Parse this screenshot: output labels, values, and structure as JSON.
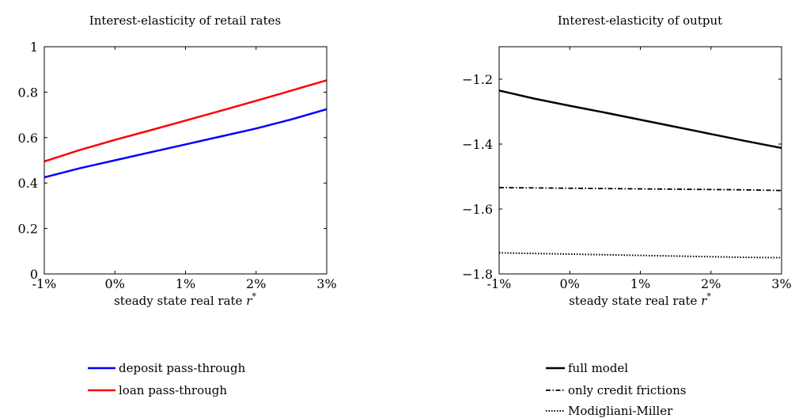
{
  "chart_data": [
    {
      "type": "line",
      "title": "Interest-elasticity of retail rates",
      "xlabel": "steady state real rate",
      "xlabel_symbol": "r",
      "xlabel_sup": "*",
      "ylabel": "",
      "xlim": [
        -1,
        3
      ],
      "ylim": [
        0,
        1
      ],
      "x_ticks": [
        -1,
        0,
        1,
        2,
        3
      ],
      "x_tick_labels": [
        "-1%",
        "0%",
        "1%",
        "2%",
        "3%"
      ],
      "y_ticks": [
        0,
        0.2,
        0.4,
        0.6,
        0.8,
        1
      ],
      "y_tick_labels": [
        "0",
        "0.2",
        "0.4",
        "0.6",
        "0.8",
        "1"
      ],
      "grid": false,
      "legend_position": "below",
      "series": [
        {
          "name": "deposit pass-through",
          "color": "#0000ff",
          "dash": "solid",
          "x": [
            -1,
            -0.5,
            0,
            0.5,
            1,
            1.5,
            2,
            2.5,
            3
          ],
          "y": [
            0.425,
            0.465,
            0.5,
            0.535,
            0.57,
            0.605,
            0.64,
            0.68,
            0.725
          ]
        },
        {
          "name": "loan pass-through",
          "color": "#ff0000",
          "dash": "solid",
          "x": [
            -1,
            -0.5,
            0,
            0.5,
            1,
            1.5,
            2,
            2.5,
            3
          ],
          "y": [
            0.495,
            0.545,
            0.59,
            0.632,
            0.675,
            0.718,
            0.762,
            0.807,
            0.852
          ]
        }
      ]
    },
    {
      "type": "line",
      "title": "Interest-elasticity of output",
      "xlabel": "steady state real rate",
      "xlabel_symbol": "r",
      "xlabel_sup": "*",
      "ylabel": "",
      "xlim": [
        -1,
        3
      ],
      "ylim": [
        -1.8,
        -1.1
      ],
      "x_ticks": [
        -1,
        0,
        1,
        2,
        3
      ],
      "x_tick_labels": [
        "-1%",
        "0%",
        "1%",
        "2%",
        "3%"
      ],
      "y_ticks": [
        -1.8,
        -1.6,
        -1.4,
        -1.2
      ],
      "y_tick_labels": [
        "−1.8",
        "−1.6",
        "−1.4",
        "−1.2"
      ],
      "grid": false,
      "legend_position": "below",
      "series": [
        {
          "name": "full model",
          "color": "#000000",
          "dash": "solid",
          "x": [
            -1,
            -0.5,
            0,
            0.5,
            1,
            1.5,
            2,
            2.5,
            3
          ],
          "y": [
            -1.235,
            -1.26,
            -1.282,
            -1.303,
            -1.325,
            -1.347,
            -1.369,
            -1.391,
            -1.412
          ]
        },
        {
          "name": "only credit frictions",
          "color": "#000000",
          "dash": "dashdot",
          "x": [
            -1,
            -0.5,
            0,
            0.5,
            1,
            1.5,
            2,
            2.5,
            3
          ],
          "y": [
            -1.534,
            -1.535,
            -1.536,
            -1.537,
            -1.538,
            -1.539,
            -1.54,
            -1.541,
            -1.543
          ]
        },
        {
          "name": "Modigliani-Miller",
          "color": "#000000",
          "dash": "dotted",
          "x": [
            -1,
            -0.5,
            0,
            0.5,
            1,
            1.5,
            2,
            2.5,
            3
          ],
          "y": [
            -1.735,
            -1.737,
            -1.739,
            -1.741,
            -1.743,
            -1.745,
            -1.747,
            -1.749,
            -1.75
          ]
        }
      ]
    }
  ]
}
